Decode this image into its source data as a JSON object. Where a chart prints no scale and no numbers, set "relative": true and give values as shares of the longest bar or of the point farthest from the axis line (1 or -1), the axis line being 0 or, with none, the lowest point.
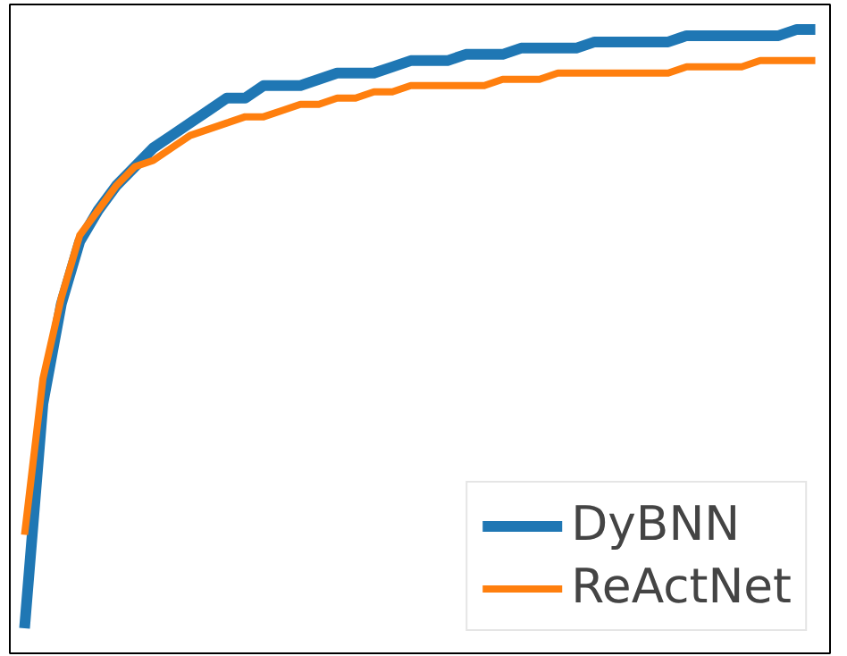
{
  "chart_data": {
    "type": "line",
    "relative": true,
    "legend": "bottom right",
    "categories": [
      null,
      null,
      null,
      null,
      null,
      null,
      null,
      null,
      null,
      null,
      null,
      null,
      null,
      null,
      null,
      null,
      null,
      null,
      null,
      null,
      null,
      null,
      null,
      null,
      null,
      null,
      null,
      null,
      null,
      null,
      null,
      null,
      null,
      null,
      null,
      null,
      null,
      null,
      null,
      null,
      null,
      null,
      null,
      null
    ],
    "series": [
      {
        "name": "DyBNN",
        "color": "#1f77b4",
        "values": [
          0.04,
          0.4,
          0.56,
          0.66,
          0.71,
          0.75,
          0.78,
          0.81,
          0.83,
          0.85,
          0.87,
          0.89,
          0.89,
          0.91,
          0.91,
          0.91,
          0.92,
          0.93,
          0.93,
          0.93,
          0.94,
          0.95,
          0.95,
          0.95,
          0.96,
          0.96,
          0.96,
          0.97,
          0.97,
          0.97,
          0.97,
          0.98,
          0.98,
          0.98,
          0.98,
          0.98,
          0.99,
          0.99,
          0.99,
          0.99,
          0.99,
          0.99,
          1.0,
          1.0
        ]
      },
      {
        "name": "ReActNet",
        "color": "#ff7f0e",
        "values": [
          0.19,
          0.44,
          0.57,
          0.67,
          0.71,
          0.75,
          0.78,
          0.79,
          0.81,
          0.83,
          0.84,
          0.85,
          0.86,
          0.86,
          0.87,
          0.88,
          0.88,
          0.89,
          0.89,
          0.9,
          0.9,
          0.91,
          0.91,
          0.91,
          0.91,
          0.91,
          0.92,
          0.92,
          0.92,
          0.93,
          0.93,
          0.93,
          0.93,
          0.93,
          0.93,
          0.93,
          0.94,
          0.94,
          0.94,
          0.94,
          0.95,
          0.95,
          0.95,
          0.95
        ]
      }
    ]
  }
}
